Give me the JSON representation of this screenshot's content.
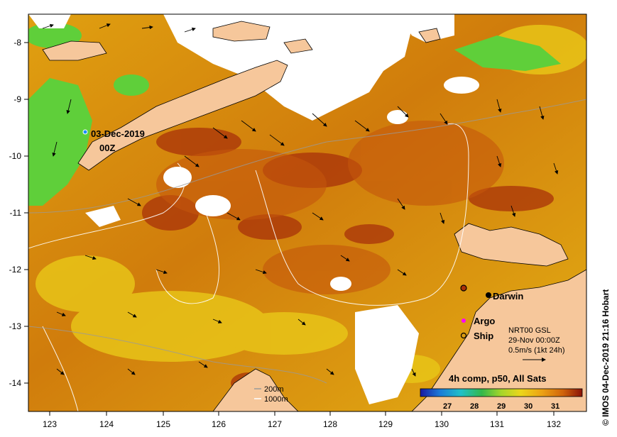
{
  "map": {
    "lon_ticks": [
      "123",
      "124",
      "125",
      "126",
      "127",
      "128",
      "129",
      "130",
      "131",
      "132"
    ],
    "lat_ticks": [
      "-8",
      "-9",
      "-10",
      "-11",
      "-12",
      "-13",
      "-14"
    ],
    "track_date": "03-Dec-2019",
    "track_time": "00Z",
    "city": "Darwin",
    "legend_argo": "Argo",
    "legend_ship": "Ship",
    "current_title": "NRT00 GSL",
    "current_date": "29-Nov 00:00Z",
    "current_scale": "0.5m/s (1kt 24h)",
    "depth_200": "200m",
    "depth_1000": "1000m",
    "colorbar_title": "4h comp, p50, All Sats",
    "colorbar_ticks": [
      "27",
      "28",
      "29",
      "30",
      "31"
    ],
    "credit": "© IMOS 04-Dec-2019 21:16 Hobart",
    "colors": {
      "ocean_warm": "#d98c0a",
      "ocean_hot": "#a8320a",
      "ocean_cool": "#e7c214",
      "ocean_green": "#5fcf3a",
      "land": "#f6c79b",
      "cloud": "#ffffff",
      "argo": "#ff00ff",
      "darwin": "#000000"
    }
  }
}
